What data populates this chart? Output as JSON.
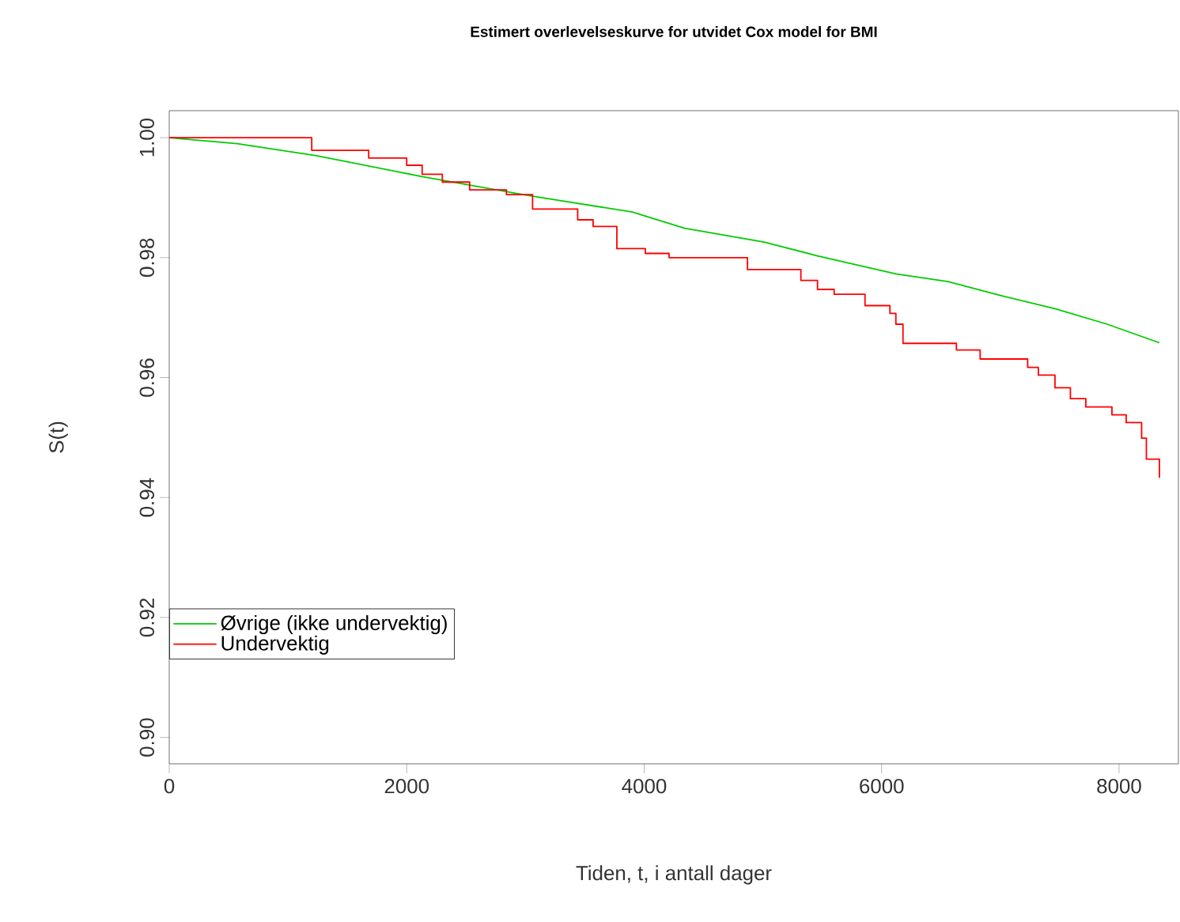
{
  "chart_data": {
    "type": "step",
    "title": "Estimert overlevelseskurve for utvidet Cox model for BMI",
    "xlabel": "Tiden, t, i antall dager",
    "ylabel": "S(t)",
    "xlim": [
      0,
      8500
    ],
    "ylim": [
      0.8956,
      1.0045
    ],
    "xticks": [
      0,
      2000,
      4000,
      6000,
      8000
    ],
    "yticks": [
      {
        "value": 0.9,
        "label": "0.90"
      },
      {
        "value": 0.92,
        "label": "0.92"
      },
      {
        "value": 0.94,
        "label": "0.94"
      },
      {
        "value": 0.96,
        "label": "0.96"
      },
      {
        "value": 0.98,
        "label": "0.98"
      },
      {
        "value": 1.0,
        "label": "1.00"
      }
    ],
    "grid": false,
    "legend": "bottom left",
    "series": [
      {
        "name": "Øvrige (ikke undervektig)",
        "color": "#00cc00",
        "type": "line",
        "x": [
          0,
          570,
          1240,
          2130,
          3010,
          3900,
          4340,
          5010,
          5460,
          6120,
          6560,
          7000,
          7460,
          7900,
          8340
        ],
        "values": [
          1.0,
          0.999,
          0.997,
          0.9935,
          0.9904,
          0.9876,
          0.9849,
          0.9826,
          0.9803,
          0.9773,
          0.976,
          0.9737,
          0.9715,
          0.9689,
          0.9658
        ]
      },
      {
        "name": "Undervektig",
        "color": "#ff0000",
        "x": [
          0,
          1200,
          1680,
          2000,
          2130,
          2300,
          2530,
          2840,
          3060,
          3440,
          3570,
          3770,
          4010,
          4210,
          4870,
          5320,
          5460,
          5600,
          5860,
          6070,
          6120,
          6180,
          6630,
          6830,
          7230,
          7320,
          7460,
          7590,
          7720,
          7940,
          8060,
          8190,
          8230,
          8340
        ],
        "values": [
          1.0,
          0.9979,
          0.9966,
          0.9954,
          0.9939,
          0.9926,
          0.9913,
          0.9905,
          0.9881,
          0.9863,
          0.9852,
          0.9815,
          0.9807,
          0.98,
          0.978,
          0.9762,
          0.9747,
          0.9739,
          0.972,
          0.9707,
          0.9689,
          0.9657,
          0.9646,
          0.9631,
          0.9617,
          0.9604,
          0.9583,
          0.9565,
          0.9551,
          0.9538,
          0.9525,
          0.9499,
          0.9464,
          0.9433
        ]
      }
    ]
  }
}
